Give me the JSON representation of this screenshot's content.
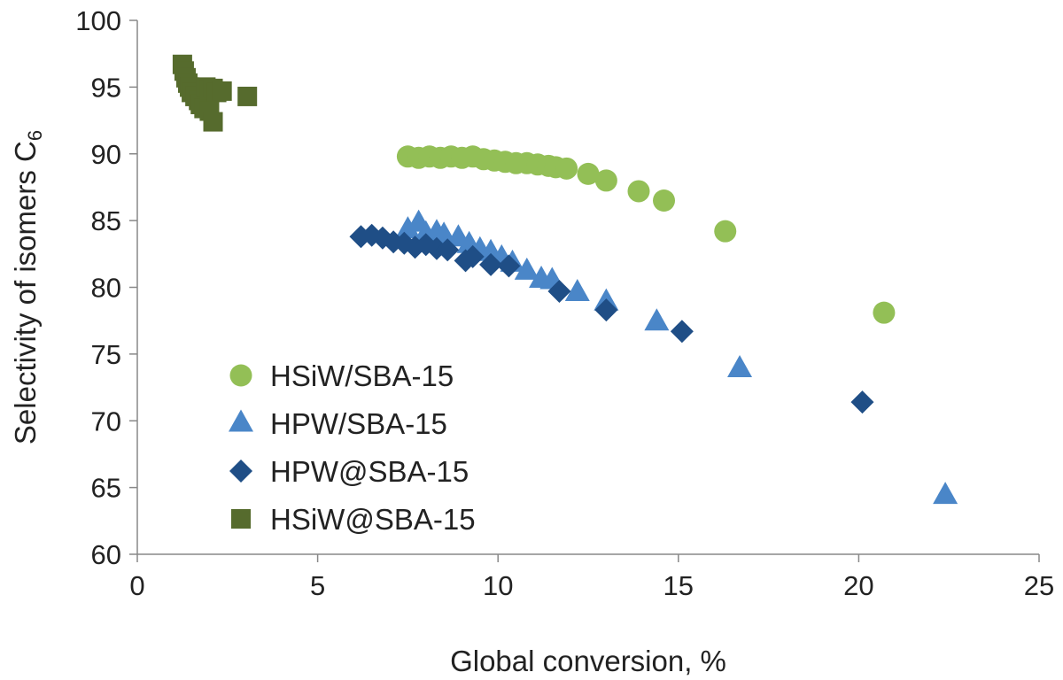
{
  "chart_data": {
    "type": "scatter",
    "title": "",
    "xlabel": "Global conversion, %",
    "ylabel_main": "Selectivity of isomers C",
    "ylabel_sub": "6",
    "xlim": [
      0,
      25
    ],
    "ylim": [
      60,
      100
    ],
    "x_ticks": [
      0,
      5,
      10,
      15,
      20,
      25
    ],
    "y_ticks": [
      60,
      65,
      70,
      75,
      80,
      85,
      90,
      95,
      100
    ],
    "grid": false,
    "legend_position": "bottom-left",
    "series": [
      {
        "name": "HSiW/SBA-15",
        "marker": "circle",
        "color": "#93bf56",
        "points": [
          [
            7.5,
            89.8
          ],
          [
            7.8,
            89.7
          ],
          [
            8.1,
            89.8
          ],
          [
            8.4,
            89.7
          ],
          [
            8.7,
            89.8
          ],
          [
            9.0,
            89.7
          ],
          [
            9.3,
            89.8
          ],
          [
            9.6,
            89.6
          ],
          [
            9.9,
            89.5
          ],
          [
            10.2,
            89.4
          ],
          [
            10.5,
            89.3
          ],
          [
            10.8,
            89.3
          ],
          [
            11.1,
            89.2
          ],
          [
            11.4,
            89.1
          ],
          [
            11.6,
            89.0
          ],
          [
            11.9,
            88.9
          ],
          [
            12.5,
            88.5
          ],
          [
            13.0,
            88.0
          ],
          [
            13.9,
            87.2
          ],
          [
            14.6,
            86.5
          ],
          [
            16.3,
            84.2
          ],
          [
            20.7,
            78.1
          ]
        ]
      },
      {
        "name": "HPW/SBA-15",
        "marker": "triangle",
        "color": "#4a86c8",
        "points": [
          [
            7.5,
            84.3
          ],
          [
            7.8,
            84.8
          ],
          [
            8.0,
            84.0
          ],
          [
            8.3,
            84.1
          ],
          [
            8.5,
            83.9
          ],
          [
            8.9,
            83.7
          ],
          [
            9.2,
            83.2
          ],
          [
            9.5,
            82.8
          ],
          [
            9.8,
            82.6
          ],
          [
            10.1,
            82.2
          ],
          [
            10.4,
            81.8
          ],
          [
            10.8,
            81.2
          ],
          [
            11.2,
            80.6
          ],
          [
            11.5,
            80.5
          ],
          [
            12.2,
            79.6
          ],
          [
            13.0,
            78.9
          ],
          [
            14.4,
            77.4
          ],
          [
            16.7,
            73.9
          ],
          [
            22.4,
            64.4
          ]
        ]
      },
      {
        "name": "HPW@SBA-15",
        "marker": "diamond",
        "color": "#1f4e86",
        "points": [
          [
            6.2,
            83.8
          ],
          [
            6.5,
            83.9
          ],
          [
            6.8,
            83.7
          ],
          [
            7.1,
            83.4
          ],
          [
            7.4,
            83.3
          ],
          [
            7.7,
            83.0
          ],
          [
            8.0,
            83.2
          ],
          [
            8.3,
            82.9
          ],
          [
            8.6,
            82.8
          ],
          [
            9.1,
            82.0
          ],
          [
            9.3,
            82.3
          ],
          [
            9.8,
            81.7
          ],
          [
            10.3,
            81.6
          ],
          [
            11.7,
            79.7
          ],
          [
            13.0,
            78.3
          ],
          [
            15.1,
            76.7
          ],
          [
            20.1,
            71.4
          ]
        ]
      },
      {
        "name": "HSiW@SBA-15",
        "marker": "square",
        "color": "#566b2d",
        "points": [
          [
            1.25,
            96.7
          ],
          [
            1.3,
            96.2
          ],
          [
            1.35,
            95.7
          ],
          [
            1.4,
            95.3
          ],
          [
            1.45,
            95.0
          ],
          [
            1.5,
            94.6
          ],
          [
            1.6,
            94.3
          ],
          [
            1.7,
            94.0
          ],
          [
            1.75,
            93.7
          ],
          [
            1.85,
            93.4
          ],
          [
            1.9,
            95.0
          ],
          [
            2.0,
            94.8
          ],
          [
            2.1,
            94.9
          ],
          [
            2.2,
            94.6
          ],
          [
            2.35,
            94.7
          ],
          [
            2.0,
            93.2
          ],
          [
            2.1,
            92.4
          ],
          [
            3.05,
            94.3
          ]
        ]
      }
    ]
  }
}
